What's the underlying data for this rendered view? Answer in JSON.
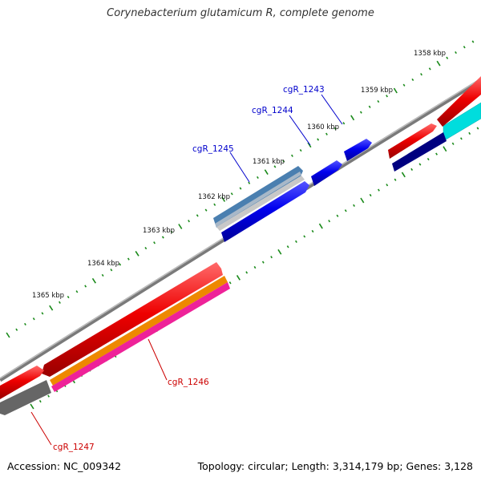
{
  "title": "Corynebacterium glutamicum R, complete genome",
  "accession": "Accession: NC_009342",
  "topology": "Topology: circular; Length: 3,314,179 bp; Genes: 3,128",
  "kbp_ticks": [
    "1358 kbp",
    "1359 kbp",
    "1360 kbp",
    "1361 kbp",
    "1362 kbp",
    "1363 kbp",
    "1364 kbp",
    "1365 kbp"
  ],
  "gene_labels_top": [
    "cgR_1243",
    "cgR_1244",
    "cgR_1245"
  ],
  "gene_labels_bottom": [
    "cgR_1246",
    "cgR_1247"
  ],
  "colors": {
    "tick": "#1a8a1a",
    "backbone": "#888888",
    "label_blue": "#0000cc",
    "label_red": "#cc0000",
    "blue_gene": "#0000ee",
    "navy_gene": "#000080",
    "red_gene": "#ee0000",
    "cyan_gene": "#00dddd",
    "steel_gene": "#4a7fb0",
    "orange_gene": "#ee8800",
    "pink_gene": "#ee2299",
    "gray_gene": "#666666"
  }
}
